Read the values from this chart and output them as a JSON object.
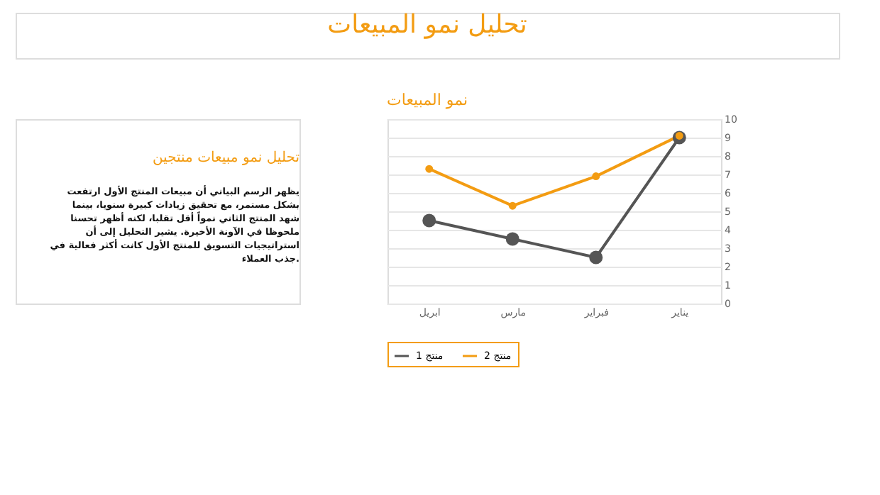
{
  "chart_data": {
    "type": "line",
    "title": "نمو المبيعات",
    "categories": [
      "ابريل",
      "مارس",
      "فبراير",
      "يناير"
    ],
    "series": [
      {
        "name": "منتج 1",
        "color": "#555555",
        "values": [
          4.5,
          3.5,
          2.5,
          9
        ]
      },
      {
        "name": "منتج 2",
        "color": "#f39c12",
        "values": [
          7.3,
          5.3,
          6.9,
          9.1
        ]
      }
    ],
    "ylim": [
      0,
      10
    ],
    "yticks": [
      0,
      1,
      2,
      3,
      4,
      5,
      6,
      7,
      8,
      9,
      10
    ],
    "grid": "y",
    "legend": "bottom",
    "marker": "circle",
    "line_style": "solid",
    "annotations": [
      "تحليل نمو المبيعات",
      "تحليل نمو مبيعات منتجين",
      "يظهر الرسم البياني أن مبيعات المنتج الأول ارتفعت\nبشكل مستمر، مع تحقيق زيادات كبيرة سنويا، بينما\nشهد المنتج الثاني نمواً أقل تقلبا، لكنه أظهر تحسنا\nملحوظا في الآونة الأخيرة. يشير التحليل إلى أن\nاستراتيجيات التسويق للمنتج الأول كانت أكثر فعالية في\nجذب العملاء."
    ]
  }
}
